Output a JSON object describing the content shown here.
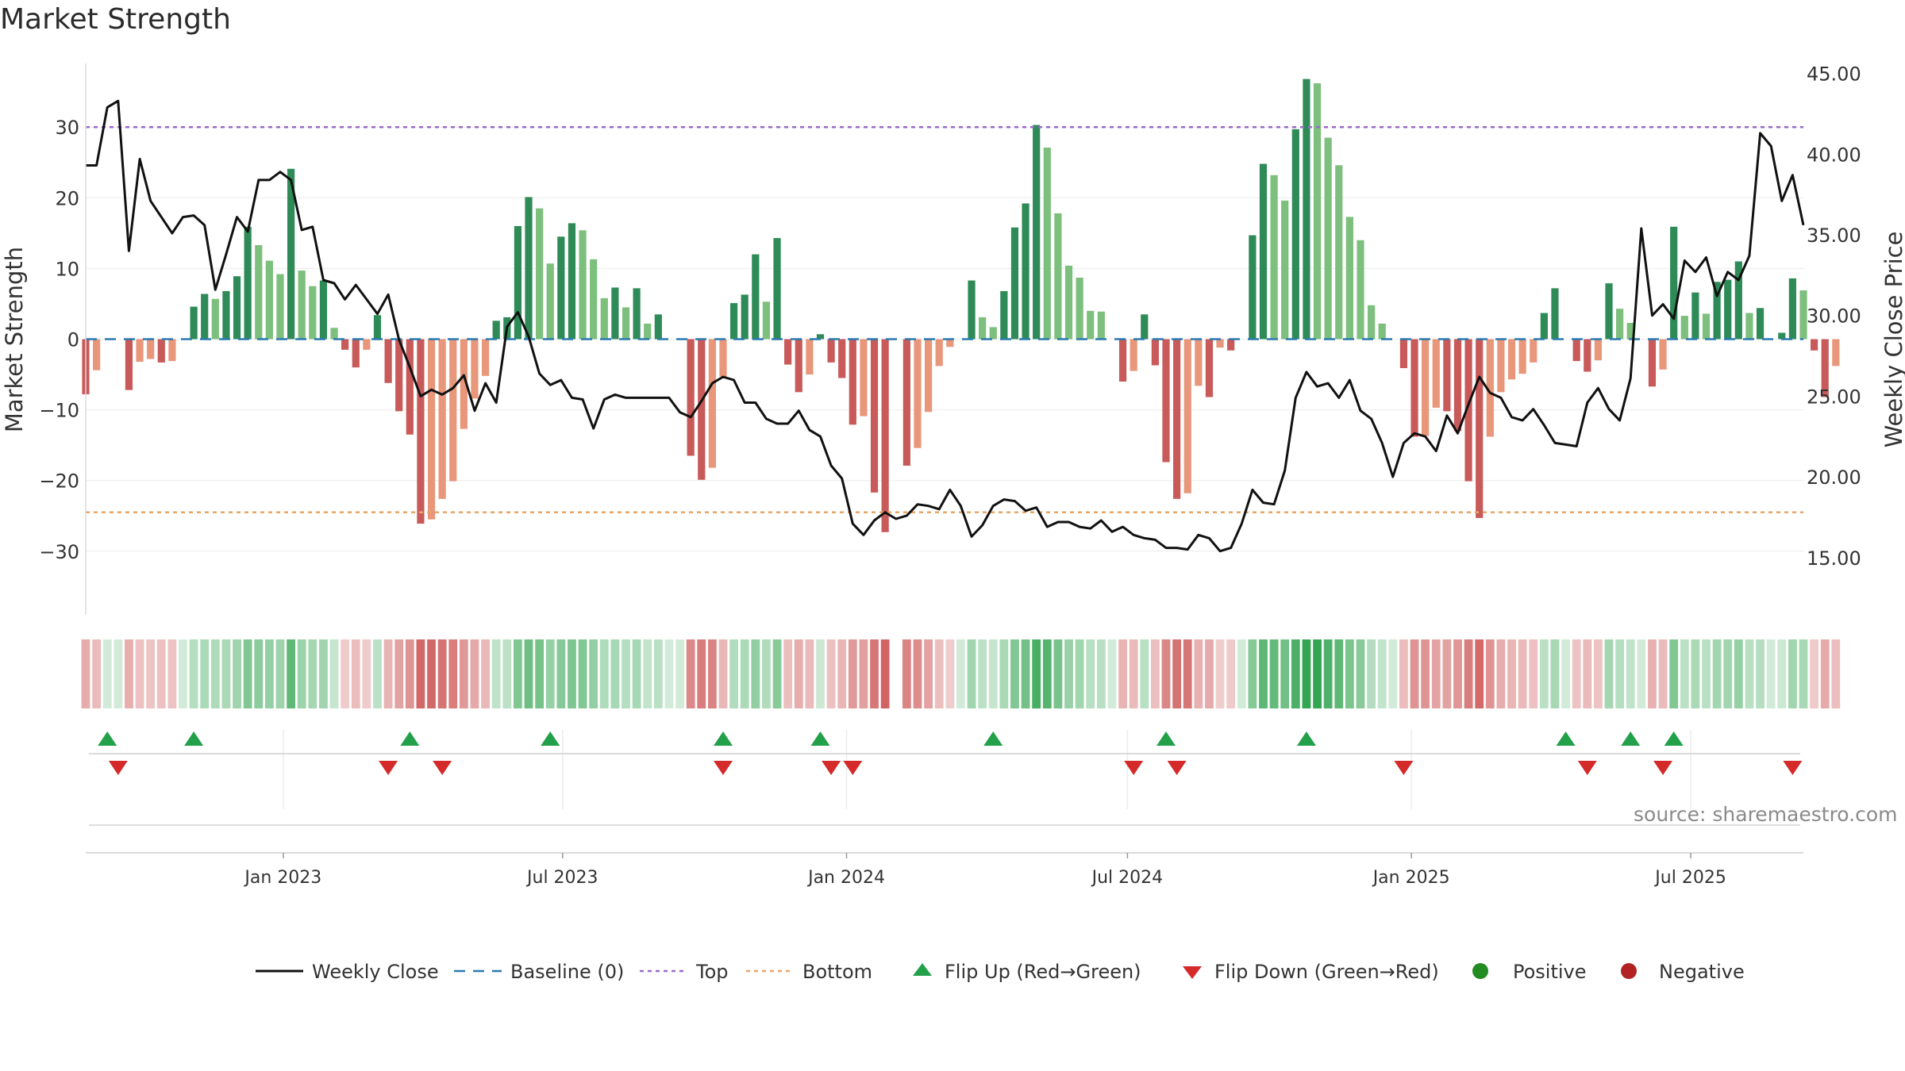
{
  "title": "Market Strength",
  "source": "source: sharemaestro.com",
  "colors": {
    "strong_pos": "#2e8b57",
    "weak_pos": "#7dbf7d",
    "strong_neg": "#c85a5a",
    "weak_neg": "#e8977a",
    "close": "#111111",
    "baseline": "#2a7ab0",
    "top": "#9a6ac8",
    "bottom": "#eaa565",
    "flip_up": "#22a04a",
    "flip_down": "#d42a2a",
    "positive": "#228b22",
    "negative": "#b22222"
  },
  "chart_data": {
    "type": "bar",
    "title": "Market Strength",
    "ylabel": "Market Strength",
    "y2label": "Weekly Close Price",
    "ylim": [
      -39,
      39
    ],
    "y2lim": [
      11.45,
      45.62
    ],
    "yticks": [
      {
        "v": 30,
        "label": "30"
      },
      {
        "v": 20,
        "label": "20"
      },
      {
        "v": 10,
        "label": "10"
      },
      {
        "v": 0,
        "label": "0"
      },
      {
        "v": -10,
        "label": "−10"
      },
      {
        "v": -20,
        "label": "−20"
      },
      {
        "v": -30,
        "label": "−30"
      }
    ],
    "y2ticks": [
      {
        "v": 45,
        "label": "45.00"
      },
      {
        "v": 40,
        "label": "40.00"
      },
      {
        "v": 35,
        "label": "35.00"
      },
      {
        "v": 30,
        "label": "30.00"
      },
      {
        "v": 25,
        "label": "25.00"
      },
      {
        "v": 20,
        "label": "20.00"
      },
      {
        "v": 15,
        "label": "15.00"
      }
    ],
    "top_level": 30,
    "bottom_level": -24.5,
    "baseline": 0,
    "x_range": [
      "2022-08-26",
      "2025-09-12"
    ],
    "xticks": [
      {
        "date": "2023-01-01",
        "label": "Jan 2023"
      },
      {
        "date": "2023-07-01",
        "label": "Jul 2023"
      },
      {
        "date": "2024-01-01",
        "label": "Jan 2024"
      },
      {
        "date": "2024-07-01",
        "label": "Jul 2024"
      },
      {
        "date": "2025-01-01",
        "label": "Jan 2025"
      },
      {
        "date": "2025-07-01",
        "label": "Jul 2025"
      }
    ],
    "weeks_start": "2022-08-26",
    "strength": [
      -7.8,
      -4.4,
      0,
      0,
      -7.2,
      -3.2,
      -2.8,
      -3.3,
      -3.1,
      0,
      4.6,
      6.4,
      5.7,
      6.8,
      8.9,
      15.9,
      13.3,
      11.1,
      9.2,
      24.1,
      9.7,
      7.5,
      8.3,
      1.6,
      -1.5,
      -4.0,
      -1.5,
      3.4,
      -6.2,
      -10.2,
      -13.5,
      -26.1,
      -25.5,
      -22.6,
      -20.1,
      -12.7,
      -8.4,
      -5.2,
      2.6,
      3.1,
      16.0,
      20.1,
      18.5,
      10.7,
      14.5,
      16.4,
      15.4,
      11.3,
      5.8,
      7.3,
      4.5,
      7.2,
      2.2,
      3.5,
      0,
      0,
      -16.5,
      -19.9,
      -18.2,
      -5.3,
      5.1,
      6.3,
      12.0,
      5.3,
      14.3,
      -3.6,
      -7.5,
      -5.0,
      0.7,
      -3.3,
      -5.5,
      -12.1,
      -10.9,
      -21.7,
      -27.3,
      0,
      -17.9,
      -15.4,
      -10.3,
      -3.8,
      -1.1,
      0,
      8.3,
      3.1,
      1.7,
      6.8,
      15.8,
      19.2,
      30.3,
      27.1,
      17.8,
      10.4,
      8.7,
      4.0,
      3.9,
      0,
      -6.0,
      -4.5,
      3.5,
      -3.7,
      -17.4,
      -22.6,
      -21.8,
      -6.6,
      -8.2,
      -1.2,
      -1.6,
      0,
      14.7,
      24.8,
      23.2,
      19.6,
      29.7,
      36.8,
      36.2,
      28.5,
      24.6,
      17.3,
      14.0,
      4.8,
      2.2,
      0,
      -4.1,
      -13.8,
      -13.7,
      -9.7,
      -10.2,
      -13.0,
      -20.1,
      -25.3,
      -13.8,
      -7.5,
      -5.7,
      -4.9,
      -3.3,
      3.7,
      7.2,
      0,
      -3.1,
      -4.6,
      -3.0,
      7.9,
      4.3,
      2.3,
      0,
      -6.7,
      -4.3,
      15.9,
      3.3,
      6.6,
      3.6,
      8.1,
      8.4,
      11.0,
      3.7,
      4.4,
      0,
      0.9,
      8.6,
      6.9,
      -1.6,
      -8.2,
      -3.8
    ],
    "close": [
      39.3,
      39.3,
      42.9,
      43.3,
      34.0,
      39.7,
      37.1,
      36.1,
      35.1,
      36.1,
      36.2,
      35.6,
      31.6,
      33.8,
      36.1,
      35.2,
      38.4,
      38.4,
      38.9,
      38.4,
      35.3,
      35.5,
      32.2,
      32.0,
      31.0,
      31.9,
      31.0,
      30.1,
      31.3,
      28.5,
      26.8,
      25.0,
      25.4,
      25.1,
      25.5,
      26.3,
      24.1,
      25.8,
      24.6,
      29.3,
      30.2,
      28.7,
      26.4,
      25.7,
      26.0,
      24.9,
      24.8,
      23.0,
      24.8,
      25.1,
      24.9,
      24.9,
      24.9,
      24.9,
      24.9,
      24.0,
      23.7,
      24.7,
      25.8,
      26.2,
      26.0,
      24.6,
      24.6,
      23.6,
      23.3,
      23.3,
      24.1,
      22.9,
      22.5,
      20.7,
      19.9,
      17.1,
      16.4,
      17.3,
      17.8,
      17.4,
      17.6,
      18.3,
      18.2,
      18.0,
      19.2,
      18.2,
      16.3,
      17.0,
      18.2,
      18.6,
      18.5,
      17.9,
      18.1,
      16.9,
      17.2,
      17.2,
      16.9,
      16.8,
      17.3,
      16.6,
      16.9,
      16.4,
      16.2,
      16.1,
      15.6,
      15.6,
      15.5,
      16.4,
      16.2,
      15.4,
      15.6,
      17.1,
      19.2,
      18.4,
      18.3,
      20.4,
      24.9,
      26.5,
      25.6,
      25.8,
      24.9,
      26.0,
      24.1,
      23.6,
      22.1,
      20.0,
      22.1,
      22.7,
      22.5,
      21.6,
      23.8,
      22.7,
      24.5,
      26.2,
      25.2,
      24.9,
      23.7,
      23.5,
      24.2,
      23.2,
      22.1,
      22.0,
      21.9,
      24.6,
      25.5,
      24.2,
      23.5,
      26.1,
      35.4,
      30.0,
      30.7,
      29.8,
      33.4,
      32.7,
      33.6,
      31.2,
      32.7,
      32.2,
      33.7,
      41.3,
      40.5,
      37.1,
      38.7,
      35.6
    ],
    "gap_weeks": [
      75
    ],
    "flip_up_dates": [
      "2022-09-09",
      "2022-11-04",
      "2023-03-24",
      "2023-06-23",
      "2023-10-13",
      "2023-12-15",
      "2024-04-05",
      "2024-07-26",
      "2024-10-25",
      "2025-04-11",
      "2025-05-23",
      "2025-06-20"
    ],
    "flip_down_dates": [
      "2022-09-16",
      "2023-03-10",
      "2023-04-14",
      "2023-10-13",
      "2023-12-22",
      "2024-01-05",
      "2024-07-05",
      "2024-08-02",
      "2024-12-27",
      "2025-04-25",
      "2025-06-13",
      "2025-09-05"
    ],
    "legend": [
      {
        "kind": "line",
        "label": "Weekly Close"
      },
      {
        "kind": "baseline",
        "label": "Baseline (0)"
      },
      {
        "kind": "top",
        "label": "Top"
      },
      {
        "kind": "bottom",
        "label": "Bottom"
      },
      {
        "kind": "up",
        "label": "Flip Up (Red→Green)"
      },
      {
        "kind": "down",
        "label": "Flip Down (Green→Red)"
      },
      {
        "kind": "pos",
        "label": "Positive"
      },
      {
        "kind": "neg",
        "label": "Negative"
      }
    ]
  }
}
